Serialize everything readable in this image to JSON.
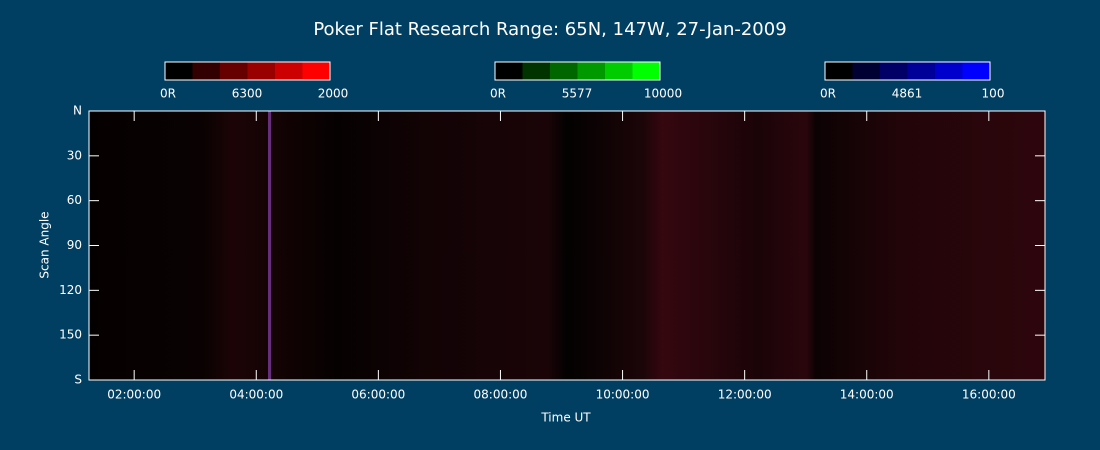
{
  "chart_data": {
    "type": "keogram",
    "title": "Poker Flat Research Range: 65N, 147W, 27-Jan-2009",
    "xlabel": "Time UT",
    "ylabel": "Scan Angle",
    "xlim": [
      1.26,
      16.92
    ],
    "xticks": [
      {
        "value": 2,
        "label": "02:00:00"
      },
      {
        "value": 4,
        "label": "04:00:00"
      },
      {
        "value": 6,
        "label": "06:00:00"
      },
      {
        "value": 8,
        "label": "08:00:00"
      },
      {
        "value": 10,
        "label": "10:00:00"
      },
      {
        "value": 12,
        "label": "12:00:00"
      },
      {
        "value": 14,
        "label": "14:00:00"
      },
      {
        "value": 16,
        "label": "16:00:00"
      }
    ],
    "ylim": [
      0,
      180
    ],
    "yticks": [
      {
        "value": 0,
        "label": "N"
      },
      30,
      60,
      90,
      120,
      150,
      {
        "value": 180,
        "label": "S"
      }
    ],
    "colorbars": [
      {
        "line": "6300",
        "range": [
          {
            "value": 0,
            "label": "0R"
          },
          2000
        ],
        "color": "#ff0000"
      },
      {
        "line": "5577",
        "range": [
          {
            "value": 0,
            "label": "0R"
          },
          10000
        ],
        "color": "#00ff00"
      },
      {
        "line": "4861",
        "range": [
          {
            "value": 0,
            "label": "0R"
          },
          100
        ],
        "color": "#0000ff"
      }
    ]
  }
}
